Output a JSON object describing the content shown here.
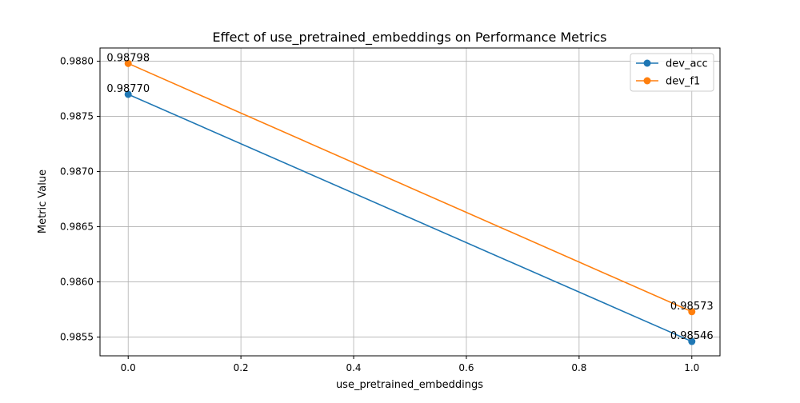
{
  "chart_data": {
    "type": "line",
    "title": "Effect of use_pretrained_embeddings on Performance Metrics",
    "xlabel": "use_pretrained_embeddings",
    "ylabel": "Metric Value",
    "x": [
      0.0,
      1.0
    ],
    "xlim": [
      -0.05,
      1.05
    ],
    "ylim": [
      0.98533,
      0.98812
    ],
    "xticks": [
      0.0,
      0.2,
      0.4,
      0.6,
      0.8,
      1.0
    ],
    "xtick_labels": [
      "0.0",
      "0.2",
      "0.4",
      "0.6",
      "0.8",
      "1.0"
    ],
    "yticks": [
      0.9855,
      0.986,
      0.9865,
      0.987,
      0.9875,
      0.988
    ],
    "ytick_labels": [
      "0.9855",
      "0.9860",
      "0.9865",
      "0.9870",
      "0.9875",
      "0.9880"
    ],
    "grid": true,
    "legend_position": "top-right",
    "series": [
      {
        "name": "dev_acc",
        "color": "#1f77b4",
        "values": [
          0.9877,
          0.98546
        ],
        "labels": [
          "0.98770",
          "0.98546"
        ]
      },
      {
        "name": "dev_f1",
        "color": "#ff7f0e",
        "values": [
          0.98798,
          0.98573
        ],
        "labels": [
          "0.98798",
          "0.98573"
        ]
      }
    ]
  }
}
